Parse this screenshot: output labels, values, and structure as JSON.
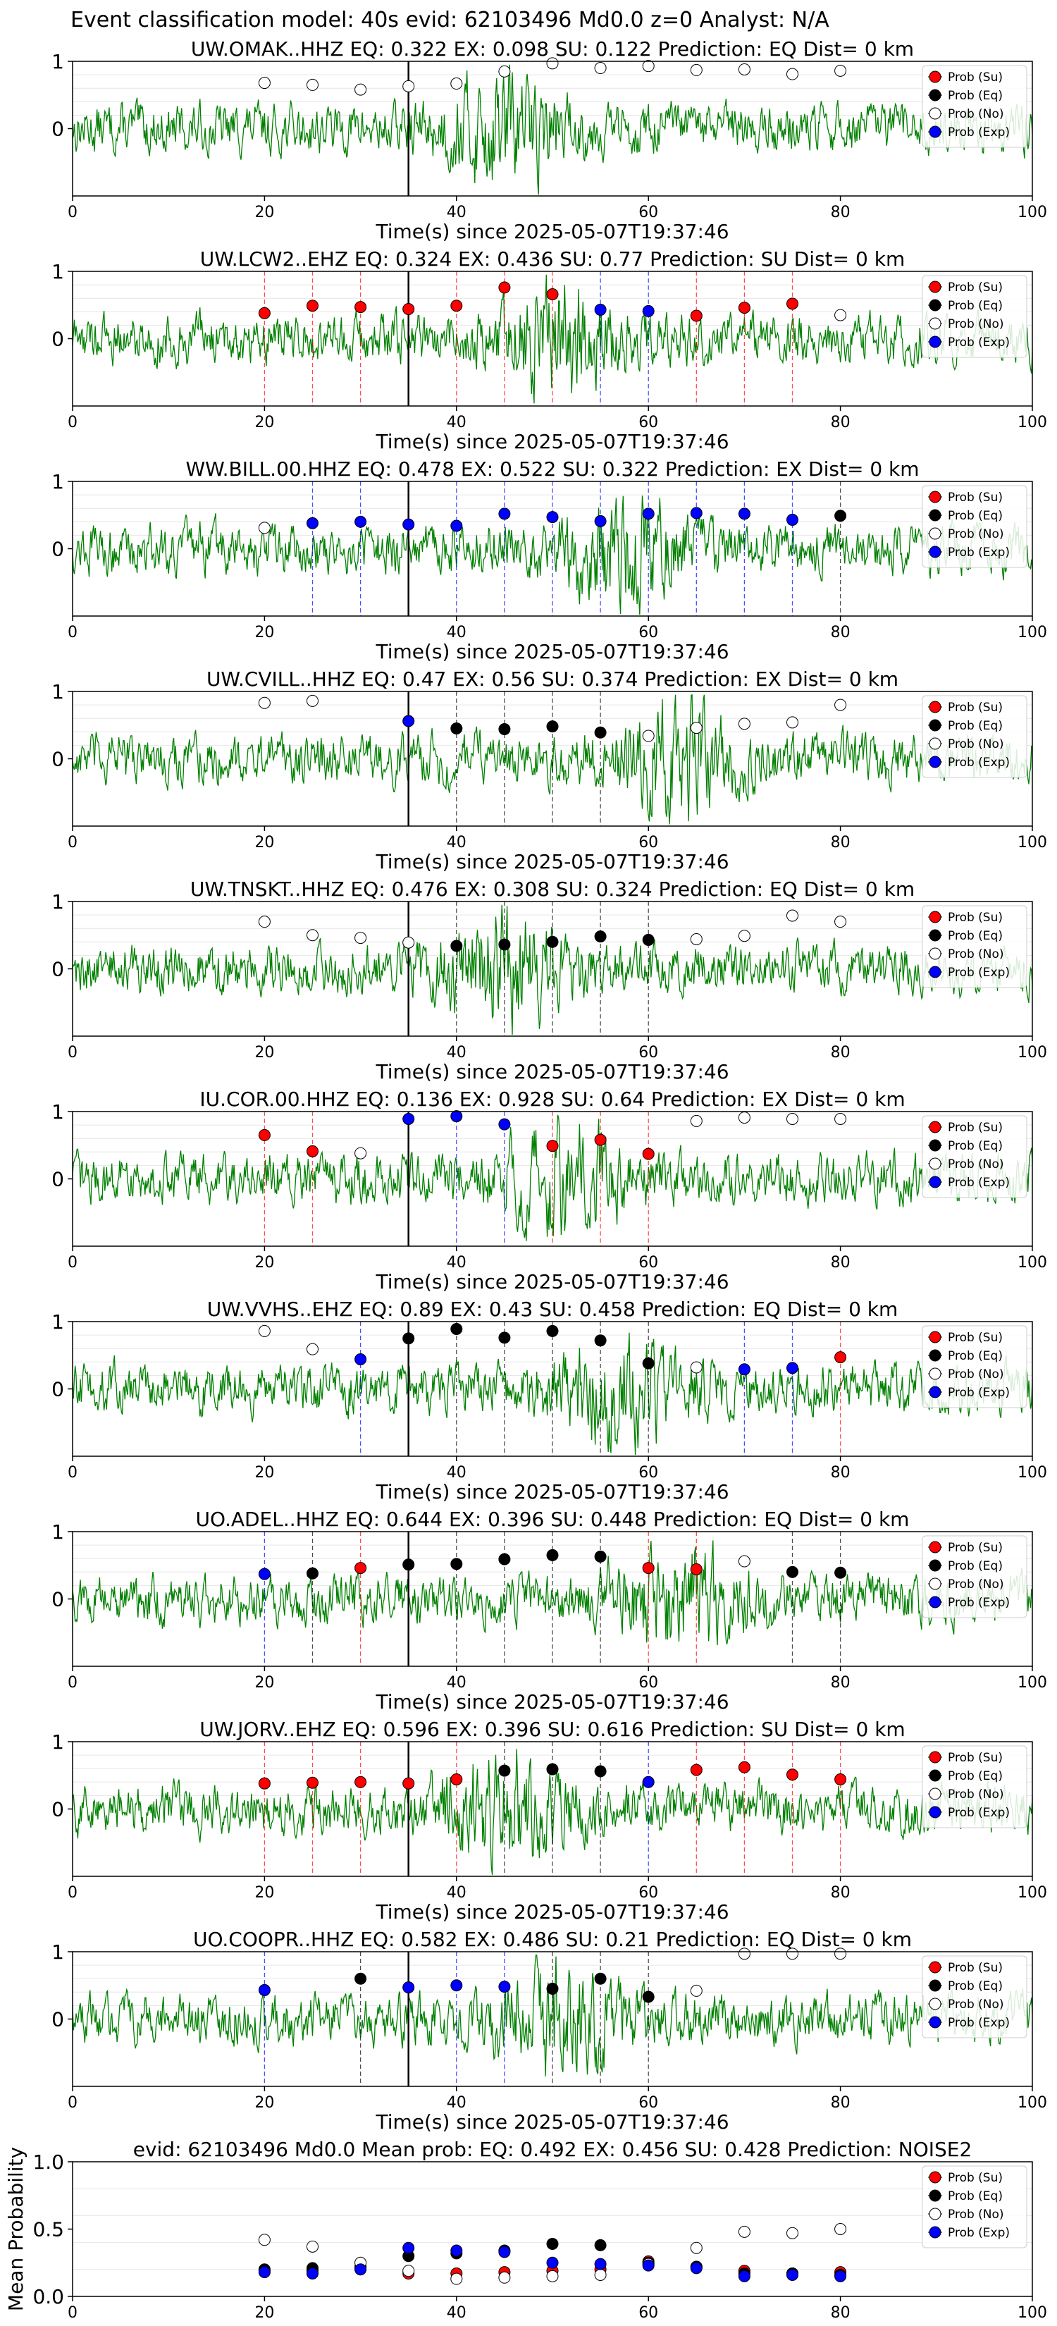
{
  "header": {
    "title": "Event classification model: 40s evid: 62103496 Md0.0 z=0 Analyst: N/A"
  },
  "colors": {
    "trace": "#008000",
    "su": "#ff0000",
    "eq": "#000000",
    "no": "#ffffff",
    "exp": "#0000ff",
    "pick_line": "#000000"
  },
  "legend": [
    "Prob (Su)",
    "Prob (Eq)",
    "Prob (No)",
    "Prob (Exp)"
  ],
  "chart_data": [
    {
      "type": "scatter",
      "title": "UW.OMAK..HHZ   EQ: 0.322  EX: 0.098  SU: 0.122   Prediction: EQ    Dist= 0 km",
      "xlabel": "Time(s) since 2025-05-07T19:37:46",
      "xlim": [
        0,
        100
      ],
      "ylim": [
        -1,
        1
      ],
      "xticks": [
        "0",
        "20",
        "40",
        "60",
        "80",
        "100"
      ],
      "yticks": [
        "0",
        "1"
      ],
      "pick_time": 35,
      "legend_position": "top-right",
      "points": [
        {
          "x": 20,
          "y": 0.68,
          "cls": "no"
        },
        {
          "x": 25,
          "y": 0.65,
          "cls": "no"
        },
        {
          "x": 30,
          "y": 0.58,
          "cls": "no"
        },
        {
          "x": 35,
          "y": 0.63,
          "cls": "no"
        },
        {
          "x": 40,
          "y": 0.67,
          "cls": "no"
        },
        {
          "x": 45,
          "y": 0.85,
          "cls": "no"
        },
        {
          "x": 50,
          "y": 0.97,
          "cls": "no"
        },
        {
          "x": 55,
          "y": 0.9,
          "cls": "no"
        },
        {
          "x": 60,
          "y": 0.93,
          "cls": "no"
        },
        {
          "x": 65,
          "y": 0.87,
          "cls": "no"
        },
        {
          "x": 70,
          "y": 0.88,
          "cls": "no"
        },
        {
          "x": 75,
          "y": 0.81,
          "cls": "no"
        },
        {
          "x": 80,
          "y": 0.86,
          "cls": "no"
        }
      ]
    },
    {
      "type": "scatter",
      "title": "UW.LCW2..EHZ   EQ: 0.324  EX: 0.436  SU: 0.77   Prediction: SU    Dist= 0 km",
      "xlabel": "Time(s) since 2025-05-07T19:37:46",
      "xlim": [
        0,
        100
      ],
      "ylim": [
        -1,
        1
      ],
      "xticks": [
        "0",
        "20",
        "40",
        "60",
        "80",
        "100"
      ],
      "yticks": [
        "0",
        "1"
      ],
      "pick_time": 35,
      "legend_position": "top-right",
      "points": [
        {
          "x": 20,
          "y": 0.38,
          "cls": "su"
        },
        {
          "x": 25,
          "y": 0.49,
          "cls": "su"
        },
        {
          "x": 30,
          "y": 0.47,
          "cls": "su"
        },
        {
          "x": 35,
          "y": 0.44,
          "cls": "su"
        },
        {
          "x": 40,
          "y": 0.49,
          "cls": "su"
        },
        {
          "x": 45,
          "y": 0.76,
          "cls": "su"
        },
        {
          "x": 50,
          "y": 0.66,
          "cls": "su"
        },
        {
          "x": 55,
          "y": 0.43,
          "cls": "exp"
        },
        {
          "x": 60,
          "y": 0.41,
          "cls": "exp"
        },
        {
          "x": 65,
          "y": 0.34,
          "cls": "su"
        },
        {
          "x": 70,
          "y": 0.46,
          "cls": "su"
        },
        {
          "x": 75,
          "y": 0.52,
          "cls": "su"
        },
        {
          "x": 80,
          "y": 0.35,
          "cls": "no"
        }
      ]
    },
    {
      "type": "scatter",
      "title": "WW.BILL.00.HHZ   EQ: 0.478  EX: 0.522  SU: 0.322   Prediction: EX    Dist= 0 km",
      "xlabel": "Time(s) since 2025-05-07T19:37:46",
      "xlim": [
        0,
        100
      ],
      "ylim": [
        -1,
        1
      ],
      "xticks": [
        "0",
        "20",
        "40",
        "60",
        "80",
        "100"
      ],
      "yticks": [
        "0",
        "1"
      ],
      "pick_time": 35,
      "legend_position": "top-right",
      "points": [
        {
          "x": 20,
          "y": 0.31,
          "cls": "no"
        },
        {
          "x": 25,
          "y": 0.38,
          "cls": "exp"
        },
        {
          "x": 30,
          "y": 0.4,
          "cls": "exp"
        },
        {
          "x": 35,
          "y": 0.36,
          "cls": "exp"
        },
        {
          "x": 40,
          "y": 0.34,
          "cls": "exp"
        },
        {
          "x": 45,
          "y": 0.52,
          "cls": "exp"
        },
        {
          "x": 50,
          "y": 0.47,
          "cls": "exp"
        },
        {
          "x": 55,
          "y": 0.41,
          "cls": "exp"
        },
        {
          "x": 60,
          "y": 0.52,
          "cls": "exp"
        },
        {
          "x": 65,
          "y": 0.53,
          "cls": "exp"
        },
        {
          "x": 70,
          "y": 0.52,
          "cls": "exp"
        },
        {
          "x": 75,
          "y": 0.43,
          "cls": "exp"
        },
        {
          "x": 80,
          "y": 0.49,
          "cls": "eq"
        }
      ]
    },
    {
      "type": "scatter",
      "title": "UW.CVILL..HHZ   EQ: 0.47  EX: 0.56  SU: 0.374   Prediction: EX    Dist= 0 km",
      "xlabel": "Time(s) since 2025-05-07T19:37:46",
      "xlim": [
        0,
        100
      ],
      "ylim": [
        -1,
        1
      ],
      "xticks": [
        "0",
        "20",
        "40",
        "60",
        "80",
        "100"
      ],
      "yticks": [
        "0",
        "1"
      ],
      "pick_time": 35,
      "legend_position": "top-right",
      "points": [
        {
          "x": 20,
          "y": 0.83,
          "cls": "no"
        },
        {
          "x": 25,
          "y": 0.86,
          "cls": "no"
        },
        {
          "x": 35,
          "y": 0.56,
          "cls": "exp"
        },
        {
          "x": 40,
          "y": 0.45,
          "cls": "eq"
        },
        {
          "x": 45,
          "y": 0.44,
          "cls": "eq"
        },
        {
          "x": 50,
          "y": 0.48,
          "cls": "eq"
        },
        {
          "x": 55,
          "y": 0.39,
          "cls": "eq"
        },
        {
          "x": 60,
          "y": 0.34,
          "cls": "no"
        },
        {
          "x": 65,
          "y": 0.46,
          "cls": "no"
        },
        {
          "x": 70,
          "y": 0.52,
          "cls": "no"
        },
        {
          "x": 75,
          "y": 0.54,
          "cls": "no"
        },
        {
          "x": 80,
          "y": 0.8,
          "cls": "no"
        }
      ]
    },
    {
      "type": "scatter",
      "title": "UW.TNSKT..HHZ   EQ: 0.476  EX: 0.308  SU: 0.324   Prediction: EQ    Dist= 0 km",
      "xlabel": "Time(s) since 2025-05-07T19:37:46",
      "xlim": [
        0,
        100
      ],
      "ylim": [
        -1,
        1
      ],
      "xticks": [
        "0",
        "20",
        "40",
        "60",
        "80",
        "100"
      ],
      "yticks": [
        "0",
        "1"
      ],
      "pick_time": 35,
      "legend_position": "top-right",
      "points": [
        {
          "x": 20,
          "y": 0.7,
          "cls": "no"
        },
        {
          "x": 25,
          "y": 0.5,
          "cls": "no"
        },
        {
          "x": 30,
          "y": 0.46,
          "cls": "no"
        },
        {
          "x": 35,
          "y": 0.39,
          "cls": "no"
        },
        {
          "x": 40,
          "y": 0.34,
          "cls": "eq"
        },
        {
          "x": 45,
          "y": 0.36,
          "cls": "eq"
        },
        {
          "x": 50,
          "y": 0.4,
          "cls": "eq"
        },
        {
          "x": 55,
          "y": 0.48,
          "cls": "eq"
        },
        {
          "x": 60,
          "y": 0.43,
          "cls": "eq"
        },
        {
          "x": 65,
          "y": 0.44,
          "cls": "no"
        },
        {
          "x": 70,
          "y": 0.49,
          "cls": "no"
        },
        {
          "x": 75,
          "y": 0.79,
          "cls": "no"
        },
        {
          "x": 80,
          "y": 0.7,
          "cls": "no"
        }
      ]
    },
    {
      "type": "scatter",
      "title": "IU.COR.00.HHZ   EQ: 0.136  EX: 0.928  SU: 0.64   Prediction: EX    Dist= 0 km",
      "xlabel": "Time(s) since 2025-05-07T19:37:46",
      "xlim": [
        0,
        100
      ],
      "ylim": [
        -1,
        1
      ],
      "xticks": [
        "0",
        "20",
        "40",
        "60",
        "80",
        "100"
      ],
      "yticks": [
        "0",
        "1"
      ],
      "pick_time": 35,
      "legend_position": "top-right",
      "points": [
        {
          "x": 20,
          "y": 0.65,
          "cls": "su"
        },
        {
          "x": 25,
          "y": 0.41,
          "cls": "su"
        },
        {
          "x": 30,
          "y": 0.38,
          "cls": "no"
        },
        {
          "x": 35,
          "y": 0.89,
          "cls": "exp"
        },
        {
          "x": 40,
          "y": 0.93,
          "cls": "exp"
        },
        {
          "x": 45,
          "y": 0.81,
          "cls": "exp"
        },
        {
          "x": 50,
          "y": 0.49,
          "cls": "su"
        },
        {
          "x": 55,
          "y": 0.58,
          "cls": "su"
        },
        {
          "x": 60,
          "y": 0.37,
          "cls": "su"
        },
        {
          "x": 65,
          "y": 0.86,
          "cls": "no"
        },
        {
          "x": 70,
          "y": 0.91,
          "cls": "no"
        },
        {
          "x": 75,
          "y": 0.89,
          "cls": "no"
        },
        {
          "x": 80,
          "y": 0.89,
          "cls": "no"
        }
      ]
    },
    {
      "type": "scatter",
      "title": "UW.VVHS..EHZ   EQ: 0.89  EX: 0.43  SU: 0.458   Prediction: EQ    Dist= 0 km",
      "xlabel": "Time(s) since 2025-05-07T19:37:46",
      "xlim": [
        0,
        100
      ],
      "ylim": [
        -1,
        1
      ],
      "xticks": [
        "0",
        "20",
        "40",
        "60",
        "80",
        "100"
      ],
      "yticks": [
        "0",
        "1"
      ],
      "pick_time": 35,
      "legend_position": "top-right",
      "points": [
        {
          "x": 20,
          "y": 0.86,
          "cls": "no"
        },
        {
          "x": 25,
          "y": 0.59,
          "cls": "no"
        },
        {
          "x": 30,
          "y": 0.44,
          "cls": "exp"
        },
        {
          "x": 35,
          "y": 0.75,
          "cls": "eq"
        },
        {
          "x": 40,
          "y": 0.89,
          "cls": "eq"
        },
        {
          "x": 45,
          "y": 0.76,
          "cls": "eq"
        },
        {
          "x": 50,
          "y": 0.86,
          "cls": "eq"
        },
        {
          "x": 55,
          "y": 0.72,
          "cls": "eq"
        },
        {
          "x": 60,
          "y": 0.38,
          "cls": "eq"
        },
        {
          "x": 65,
          "y": 0.32,
          "cls": "no"
        },
        {
          "x": 70,
          "y": 0.29,
          "cls": "exp"
        },
        {
          "x": 75,
          "y": 0.31,
          "cls": "exp"
        },
        {
          "x": 80,
          "y": 0.47,
          "cls": "su"
        }
      ]
    },
    {
      "type": "scatter",
      "title": "UO.ADEL..HHZ   EQ: 0.644  EX: 0.396  SU: 0.448   Prediction: EQ    Dist= 0 km",
      "xlabel": "Time(s) since 2025-05-07T19:37:46",
      "xlim": [
        0,
        100
      ],
      "ylim": [
        -1,
        1
      ],
      "xticks": [
        "0",
        "20",
        "40",
        "60",
        "80",
        "100"
      ],
      "yticks": [
        "0",
        "1"
      ],
      "pick_time": 35,
      "legend_position": "top-right",
      "points": [
        {
          "x": 20,
          "y": 0.37,
          "cls": "exp"
        },
        {
          "x": 25,
          "y": 0.38,
          "cls": "eq"
        },
        {
          "x": 30,
          "y": 0.46,
          "cls": "su"
        },
        {
          "x": 35,
          "y": 0.51,
          "cls": "eq"
        },
        {
          "x": 40,
          "y": 0.52,
          "cls": "eq"
        },
        {
          "x": 45,
          "y": 0.59,
          "cls": "eq"
        },
        {
          "x": 50,
          "y": 0.65,
          "cls": "eq"
        },
        {
          "x": 55,
          "y": 0.63,
          "cls": "eq"
        },
        {
          "x": 60,
          "y": 0.46,
          "cls": "su"
        },
        {
          "x": 65,
          "y": 0.44,
          "cls": "su"
        },
        {
          "x": 70,
          "y": 0.56,
          "cls": "no"
        },
        {
          "x": 75,
          "y": 0.4,
          "cls": "eq"
        },
        {
          "x": 80,
          "y": 0.39,
          "cls": "eq"
        }
      ]
    },
    {
      "type": "scatter",
      "title": "UW.JORV..EHZ   EQ: 0.596  EX: 0.396  SU: 0.616   Prediction: SU    Dist= 0 km",
      "xlabel": "Time(s) since 2025-05-07T19:37:46",
      "xlim": [
        0,
        100
      ],
      "ylim": [
        -1,
        1
      ],
      "xticks": [
        "0",
        "20",
        "40",
        "60",
        "80",
        "100"
      ],
      "yticks": [
        "0",
        "1"
      ],
      "pick_time": 35,
      "legend_position": "top-right",
      "points": [
        {
          "x": 20,
          "y": 0.38,
          "cls": "su"
        },
        {
          "x": 25,
          "y": 0.39,
          "cls": "su"
        },
        {
          "x": 30,
          "y": 0.4,
          "cls": "su"
        },
        {
          "x": 35,
          "y": 0.38,
          "cls": "su"
        },
        {
          "x": 40,
          "y": 0.44,
          "cls": "su"
        },
        {
          "x": 45,
          "y": 0.57,
          "cls": "eq"
        },
        {
          "x": 50,
          "y": 0.59,
          "cls": "eq"
        },
        {
          "x": 55,
          "y": 0.56,
          "cls": "eq"
        },
        {
          "x": 60,
          "y": 0.4,
          "cls": "exp"
        },
        {
          "x": 65,
          "y": 0.58,
          "cls": "su"
        },
        {
          "x": 70,
          "y": 0.62,
          "cls": "su"
        },
        {
          "x": 75,
          "y": 0.51,
          "cls": "su"
        },
        {
          "x": 80,
          "y": 0.44,
          "cls": "su"
        }
      ]
    },
    {
      "type": "scatter",
      "title": "UO.COOPR..HHZ   EQ: 0.582  EX: 0.486  SU: 0.21   Prediction: EQ    Dist= 0 km",
      "xlabel": "Time(s) since 2025-05-07T19:37:46",
      "xlim": [
        0,
        100
      ],
      "ylim": [
        -1,
        1
      ],
      "xticks": [
        "0",
        "20",
        "40",
        "60",
        "80",
        "100"
      ],
      "yticks": [
        "0",
        "1"
      ],
      "pick_time": 35,
      "legend_position": "top-right",
      "points": [
        {
          "x": 20,
          "y": 0.43,
          "cls": "exp"
        },
        {
          "x": 30,
          "y": 0.6,
          "cls": "eq"
        },
        {
          "x": 35,
          "y": 0.47,
          "cls": "exp"
        },
        {
          "x": 40,
          "y": 0.5,
          "cls": "exp"
        },
        {
          "x": 45,
          "y": 0.48,
          "cls": "exp"
        },
        {
          "x": 50,
          "y": 0.45,
          "cls": "eq"
        },
        {
          "x": 55,
          "y": 0.6,
          "cls": "eq"
        },
        {
          "x": 60,
          "y": 0.33,
          "cls": "eq"
        },
        {
          "x": 65,
          "y": 0.42,
          "cls": "no"
        },
        {
          "x": 70,
          "y": 0.97,
          "cls": "no"
        },
        {
          "x": 75,
          "y": 0.97,
          "cls": "no"
        },
        {
          "x": 80,
          "y": 0.97,
          "cls": "no"
        }
      ]
    },
    {
      "type": "scatter",
      "title": "evid: 62103496  Md0.0   Mean prob:   EQ: 0.492  EX: 0.456  SU: 0.428   Prediction: NOISE2",
      "xlabel": "",
      "ylabel": "Mean Probability",
      "xlim": [
        0,
        100
      ],
      "ylim": [
        0,
        1
      ],
      "xticks": [
        "0",
        "20",
        "40",
        "60",
        "80",
        "100"
      ],
      "yticks": [
        "0.0",
        "0.5",
        "1.0"
      ],
      "legend_position": "top-right",
      "series": [
        {
          "name": "Prob (Su)",
          "cls": "su",
          "x": [
            20,
            25,
            30,
            35,
            40,
            45,
            50,
            55,
            60,
            65,
            70,
            75,
            80
          ],
          "y": [
            0.19,
            0.19,
            0.21,
            0.17,
            0.17,
            0.18,
            0.19,
            0.2,
            0.26,
            0.22,
            0.19,
            0.17,
            0.18
          ]
        },
        {
          "name": "Prob (Eq)",
          "cls": "eq",
          "x": [
            20,
            25,
            30,
            35,
            40,
            45,
            50,
            55,
            60,
            65,
            70,
            75,
            80
          ],
          "y": [
            0.2,
            0.21,
            0.22,
            0.3,
            0.32,
            0.34,
            0.39,
            0.38,
            0.25,
            0.22,
            0.17,
            0.17,
            0.16
          ]
        },
        {
          "name": "Prob (No)",
          "cls": "no",
          "x": [
            20,
            25,
            30,
            35,
            40,
            45,
            50,
            55,
            60,
            65,
            70,
            75,
            80
          ],
          "y": [
            0.42,
            0.37,
            0.25,
            0.19,
            0.13,
            0.14,
            0.15,
            0.16,
            0.24,
            0.36,
            0.48,
            0.47,
            0.5
          ]
        },
        {
          "name": "Prob (Exp)",
          "cls": "exp",
          "x": [
            20,
            25,
            30,
            35,
            40,
            45,
            50,
            55,
            60,
            65,
            70,
            75,
            80
          ],
          "y": [
            0.18,
            0.17,
            0.2,
            0.36,
            0.34,
            0.33,
            0.25,
            0.24,
            0.23,
            0.21,
            0.15,
            0.16,
            0.15
          ]
        }
      ]
    }
  ]
}
